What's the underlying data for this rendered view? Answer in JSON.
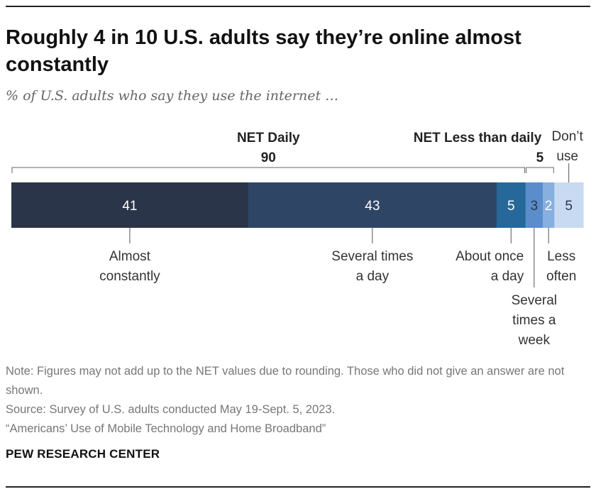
{
  "header": {
    "title": "Roughly 4 in 10 U.S. adults say they’re online almost constantly",
    "subtitle": "% of U.S. adults who say they use the internet …"
  },
  "footer": {
    "note": "Note: Figures may not add up to the NET values due to rounding. Those who did not give an answer are not shown.",
    "source": " Source: Survey of U.S. adults conducted May 19-Sept. 5, 2023.",
    "report": "“Americans’ Use of Mobile Technology and Home Broadband”",
    "brand": "PEW RESEARCH CENTER"
  },
  "chart_data": {
    "type": "bar",
    "orientation": "horizontal-stacked",
    "categories": [
      "Almost constantly",
      "Several times a day",
      "About once a day",
      "Several times a week",
      "Less often",
      "Don’t use"
    ],
    "values": [
      41,
      43,
      5,
      3,
      2,
      5
    ],
    "colors": [
      "#2b3549",
      "#2f4565",
      "#26689a",
      "#5b8dcc",
      "#87afe0",
      "#c7daf2"
    ],
    "label_colors": [
      "#ffffff",
      "#ffffff",
      "#ffffff",
      "#2b3549",
      "#ffffff",
      "#2b3549"
    ],
    "groups": [
      {
        "label": "NET Daily",
        "value": "90"
      },
      {
        "label": "NET Less than daily",
        "value": "5"
      }
    ]
  }
}
